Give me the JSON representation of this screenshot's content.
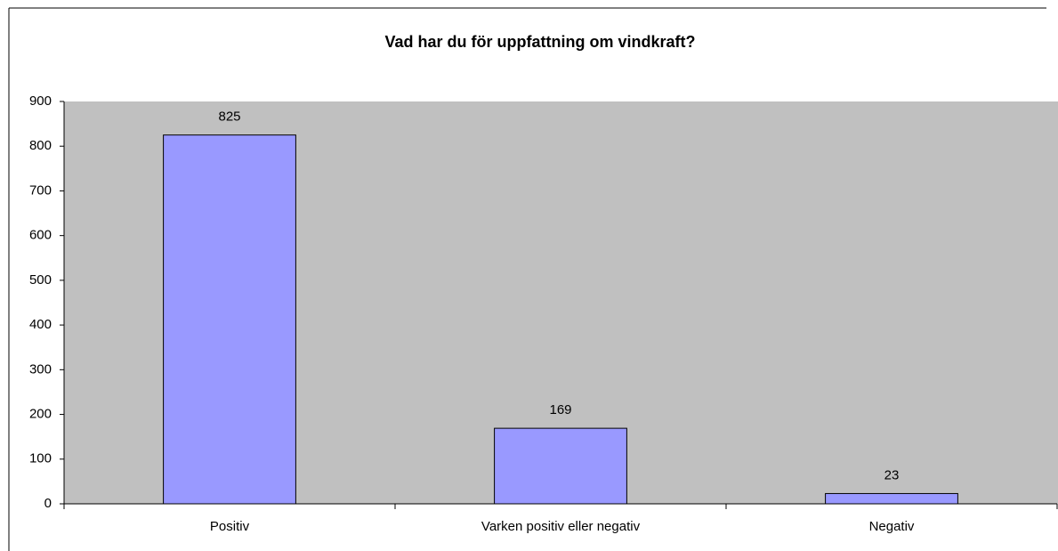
{
  "chart_data": {
    "type": "bar",
    "title": "Vad har du för uppfattning om vindkraft?",
    "categories": [
      "Positiv",
      "Varken positiv eller negativ",
      "Negativ"
    ],
    "values": [
      825,
      169,
      23
    ],
    "color": "#9999ff",
    "ylim": [
      0,
      900
    ],
    "yticks": [
      0,
      100,
      200,
      300,
      400,
      500,
      600,
      700,
      800,
      900
    ],
    "grid": false
  }
}
